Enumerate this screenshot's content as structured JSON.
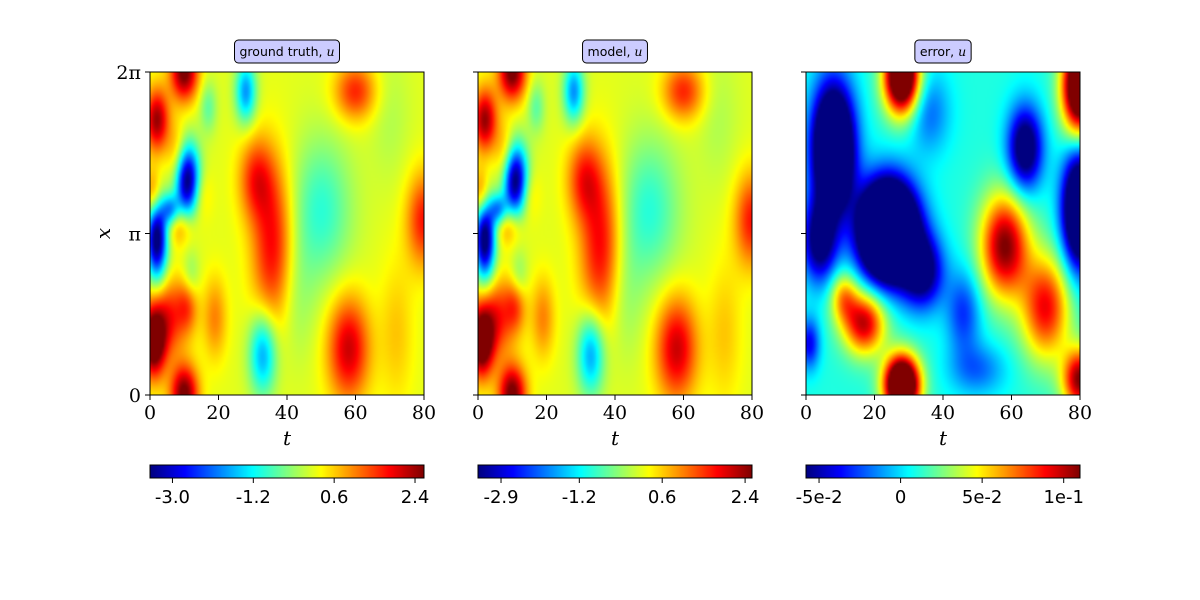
{
  "chart_data": [
    {
      "type": "heatmap",
      "title": "ground truth, ",
      "title_var": "u",
      "xlabel": "t",
      "ylabel": "x",
      "xlim": [
        0,
        80
      ],
      "ylim": [
        0,
        6.283
      ],
      "xticks": [
        0,
        20,
        40,
        60,
        80
      ],
      "xtick_labels": [
        "0",
        "20",
        "40",
        "60",
        "80"
      ],
      "yticks": [
        0,
        3.1416,
        6.2832
      ],
      "ytick_labels": [
        "0",
        "π",
        "2π"
      ],
      "colormap": "jet",
      "vmin": -3.5,
      "vmax": 2.6,
      "colorbar_ticks": [
        -3.0,
        -1.2,
        0.6,
        2.4
      ],
      "colorbar_labels": [
        "-3.0",
        "-1.2",
        "0.6",
        "2.4"
      ],
      "field": "solution"
    },
    {
      "type": "heatmap",
      "title": "model, ",
      "title_var": "u",
      "xlabel": "t",
      "ylabel": "",
      "xlim": [
        0,
        80
      ],
      "ylim": [
        0,
        6.283
      ],
      "xticks": [
        0,
        20,
        40,
        60,
        80
      ],
      "xtick_labels": [
        "0",
        "20",
        "40",
        "60",
        "80"
      ],
      "yticks": [
        0,
        3.1416,
        6.2832
      ],
      "ytick_labels": [
        "",
        "",
        ""
      ],
      "colormap": "jet",
      "vmin": -3.4,
      "vmax": 2.55,
      "colorbar_ticks": [
        -2.9,
        -1.2,
        0.6,
        2.4
      ],
      "colorbar_labels": [
        "-2.9",
        "-1.2",
        "0.6",
        "2.4"
      ],
      "field": "solution"
    },
    {
      "type": "heatmap",
      "title": "error, ",
      "title_var": "u",
      "xlabel": "t",
      "ylabel": "",
      "xlim": [
        0,
        80
      ],
      "ylim": [
        0,
        6.283
      ],
      "xticks": [
        0,
        20,
        40,
        60,
        80
      ],
      "xtick_labels": [
        "0",
        "20",
        "40",
        "60",
        "80"
      ],
      "yticks": [
        0,
        3.1416,
        6.2832
      ],
      "ytick_labels": [
        "",
        "",
        ""
      ],
      "colormap": "jet",
      "vmin": -0.058,
      "vmax": 0.11,
      "colorbar_ticks": [
        -0.05,
        0,
        0.05,
        0.1
      ],
      "colorbar_labels": [
        "-5e-2",
        "0",
        "5e-2",
        "1e-1"
      ],
      "field": "error"
    }
  ],
  "colors": {
    "title_box_fill": "#ccccff",
    "axis": "#000000"
  }
}
